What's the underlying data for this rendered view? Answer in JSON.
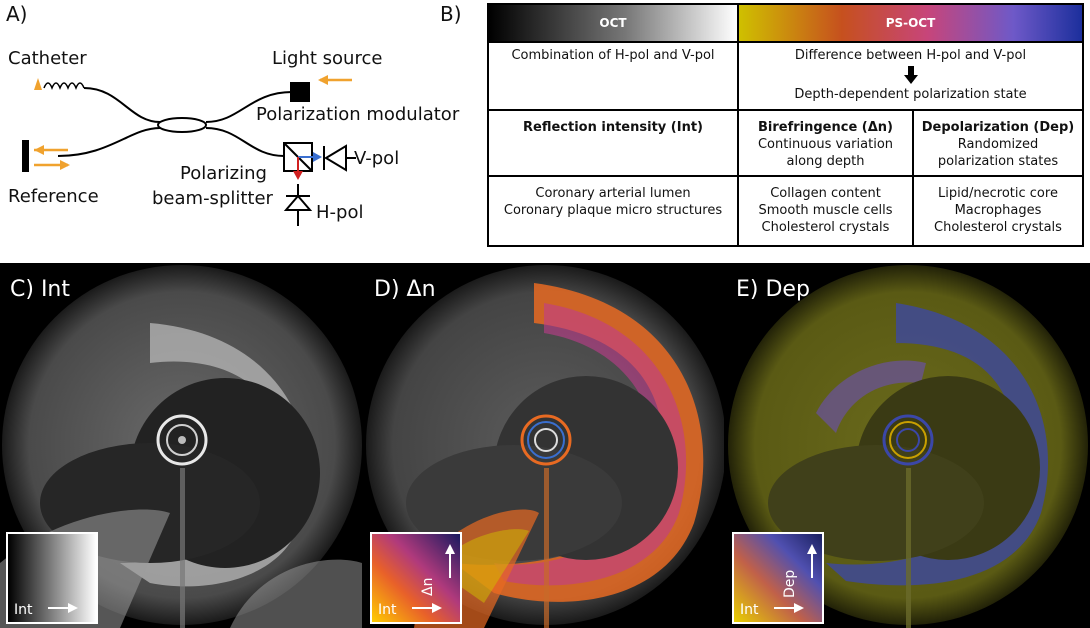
{
  "panel_a": {
    "label": "A)",
    "catheter": "Catheter",
    "light_source": "Light source",
    "polarization_modulator": "Polarization modulator",
    "reference": "Reference",
    "pbs_line1": "Polarizing",
    "pbs_line2": "beam-splitter",
    "vpol": "V-pol",
    "hpol": "H-pol"
  },
  "panel_b": {
    "label": "B)",
    "oct_header": "OCT",
    "psoct_header": "PS-OCT",
    "row1": {
      "oct": "Combination of H-pol and V-pol",
      "ps_line1": "Difference between H-pol and V-pol",
      "ps_line2": "Depth-dependent polarization state"
    },
    "row2": {
      "int_title": "Reflection intensity (Int)",
      "bir_title": "Birefringence (Δn)",
      "bir_line1": "Continuous variation",
      "bir_line2": "along depth",
      "dep_title": "Depolarization (Dep)",
      "dep_line1": "Randomized",
      "dep_line2": "polarization states"
    },
    "row3": {
      "int_line1": "Coronary arterial lumen",
      "int_line2": "Coronary plaque micro structures",
      "bir_line1": "Collagen content",
      "bir_line2": "Smooth muscle cells",
      "bir_line3": "Cholesterol crystals",
      "dep_line1": "Lipid/necrotic core",
      "dep_line2": "Macrophages",
      "dep_line3": "Cholesterol crystals"
    }
  },
  "panel_c": {
    "label": "C) Int",
    "inset_x": "Int"
  },
  "panel_d": {
    "label": "D) Δn",
    "inset_x": "Int",
    "inset_y": "Δn"
  },
  "panel_e": {
    "label": "E) Dep",
    "inset_x": "Int",
    "inset_y": "Dep"
  },
  "colors": {
    "arrow_orange": "#f0a22e",
    "blue_arrow": "#3a6fd0",
    "red_arrow": "#d02020",
    "birefringence_orange": "#e86a22",
    "birefringence_magenta": "#c03c8c",
    "depolarization_yellow": "#8a8a14",
    "depolarization_blue": "#3b47a8"
  }
}
